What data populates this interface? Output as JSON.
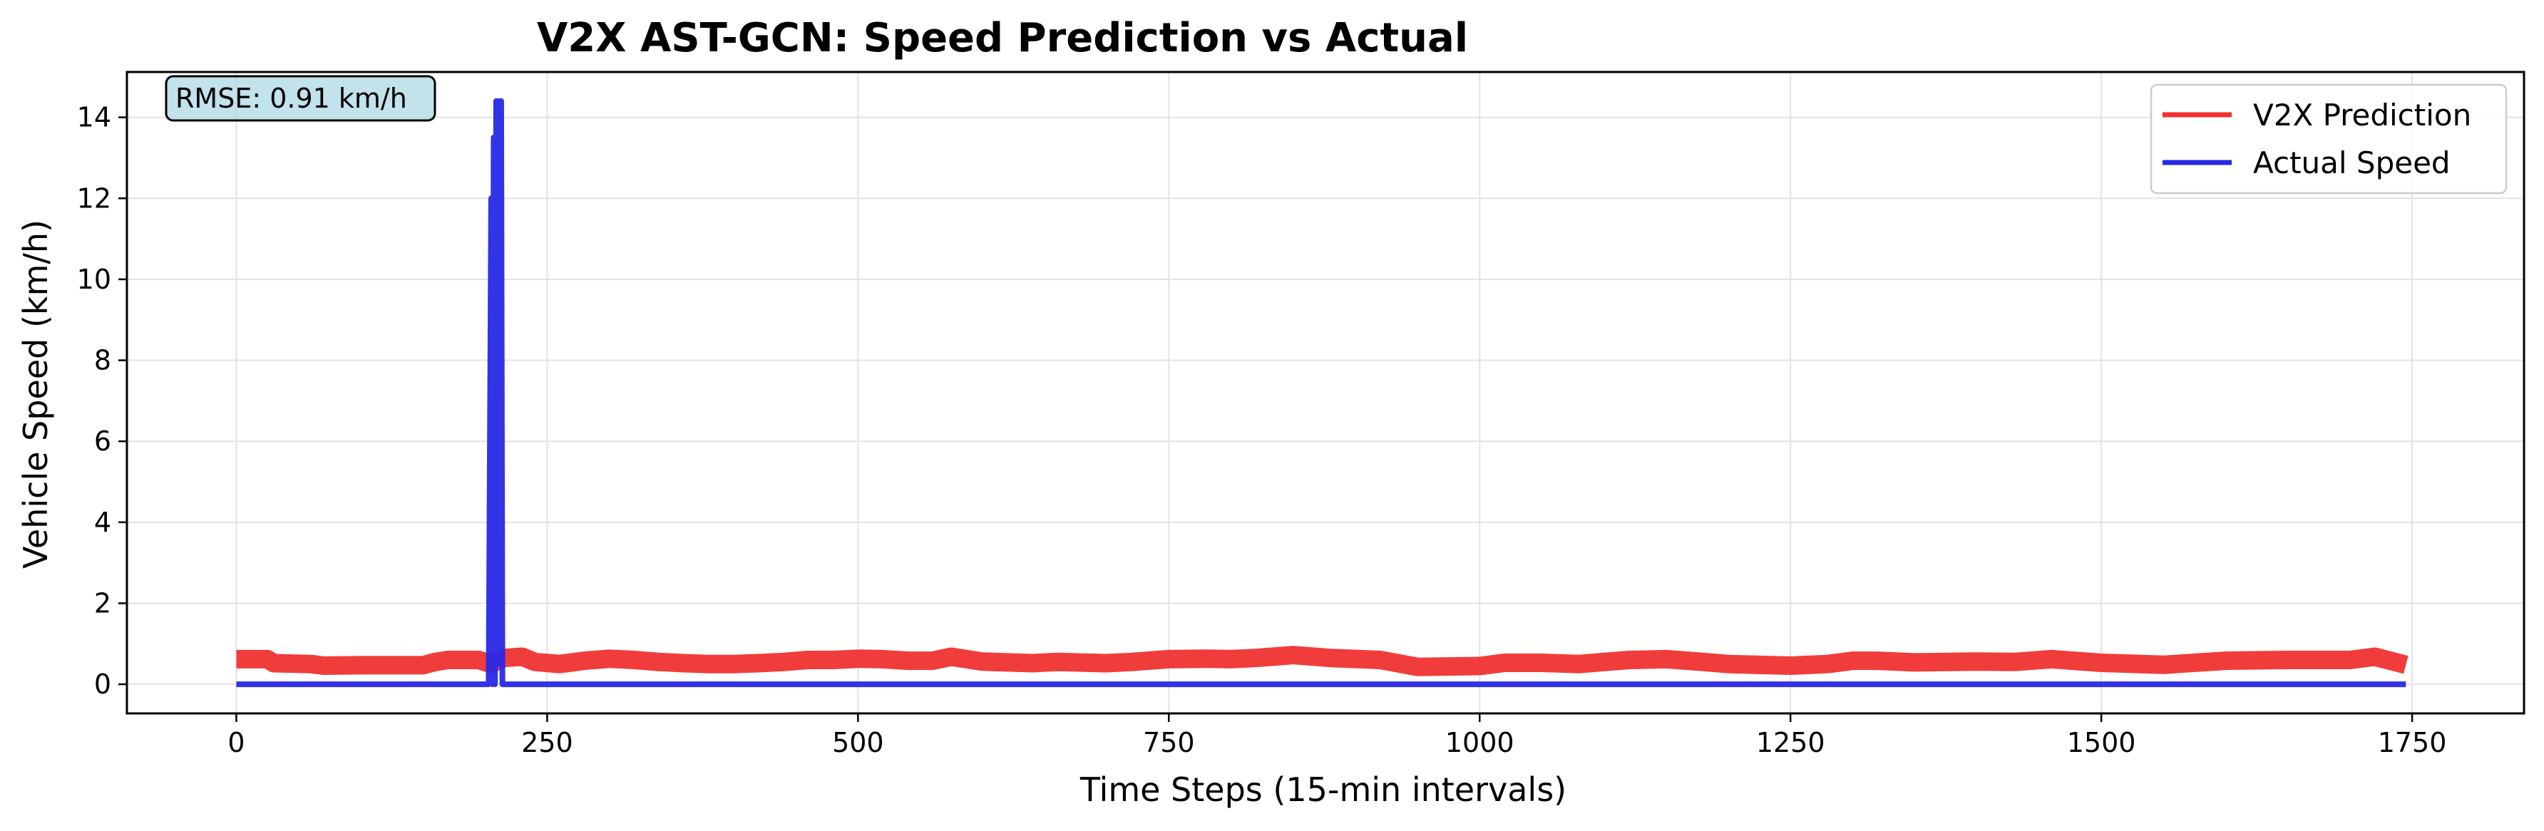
{
  "chart_data": {
    "type": "line",
    "title": "V2X AST-GCN: Speed Prediction vs Actual",
    "xlabel": "Time Steps (15-min intervals)",
    "ylabel": "Vehicle Speed (km/h)",
    "xlim": [
      -88,
      1840
    ],
    "ylim": [
      -0.72,
      15.12
    ],
    "x_ticks": [
      0,
      250,
      500,
      750,
      1000,
      1250,
      1500,
      1750
    ],
    "y_ticks": [
      0,
      2,
      4,
      6,
      8,
      10,
      12,
      14
    ],
    "grid": true,
    "legend_position": "top-right",
    "annotation": {
      "text": "RMSE: 0.91 km/h",
      "position": "top-left"
    },
    "series": [
      {
        "name": "V2X Prediction",
        "color": "#f03232",
        "line_weight": "thick",
        "x": [
          0,
          25,
          30,
          60,
          70,
          100,
          150,
          160,
          170,
          195,
          205,
          215,
          230,
          240,
          260,
          280,
          300,
          320,
          340,
          360,
          380,
          400,
          420,
          440,
          460,
          480,
          500,
          520,
          540,
          560,
          575,
          600,
          640,
          660,
          700,
          720,
          750,
          780,
          800,
          820,
          850,
          880,
          920,
          950,
          1000,
          1020,
          1050,
          1080,
          1120,
          1150,
          1180,
          1200,
          1250,
          1280,
          1300,
          1320,
          1350,
          1400,
          1430,
          1460,
          1500,
          1550,
          1600,
          1650,
          1700,
          1720,
          1745
        ],
        "y": [
          0.62,
          0.62,
          0.52,
          0.5,
          0.46,
          0.47,
          0.47,
          0.55,
          0.6,
          0.6,
          0.5,
          0.65,
          0.68,
          0.55,
          0.5,
          0.58,
          0.63,
          0.6,
          0.55,
          0.52,
          0.5,
          0.5,
          0.52,
          0.55,
          0.6,
          0.6,
          0.63,
          0.62,
          0.58,
          0.58,
          0.68,
          0.56,
          0.52,
          0.55,
          0.52,
          0.55,
          0.62,
          0.63,
          0.62,
          0.65,
          0.72,
          0.65,
          0.6,
          0.43,
          0.45,
          0.53,
          0.53,
          0.5,
          0.6,
          0.62,
          0.55,
          0.5,
          0.46,
          0.5,
          0.58,
          0.58,
          0.54,
          0.56,
          0.55,
          0.62,
          0.53,
          0.48,
          0.58,
          0.6,
          0.6,
          0.68,
          0.48
        ]
      },
      {
        "name": "Actual Speed",
        "color": "#2828e6",
        "line_weight": "medium",
        "x": [
          0,
          203,
          205,
          206,
          207,
          208,
          209,
          210,
          211,
          212,
          213,
          214,
          215,
          1745
        ],
        "y": [
          0,
          0,
          12.0,
          0,
          13.5,
          0,
          14.4,
          14.4,
          0.5,
          14.4,
          14.4,
          0,
          0,
          0
        ]
      }
    ]
  }
}
